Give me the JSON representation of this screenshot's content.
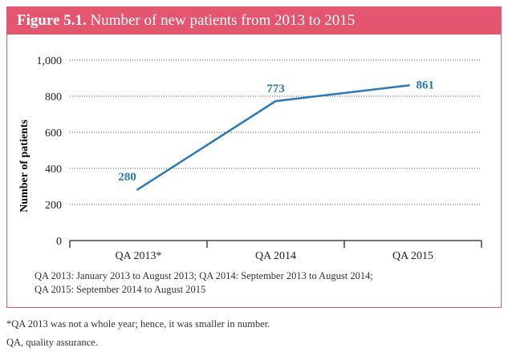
{
  "figure": {
    "label": "Figure 5.1.",
    "title": "Number of new patients from 2013 to 2015",
    "accent_color": "#e4566f",
    "line_color": "#2878b8"
  },
  "notes": {
    "line1": "QA 2013: January 2013 to August 2013;  QA 2014: September 2013 to August 2014;",
    "line2": "QA 2015: September 2014 to August 2015"
  },
  "footnotes": {
    "asterisk": "*QA 2013 was not a whole year; hence, it was smaller in number.",
    "abbreviation": "QA, quality assurance."
  },
  "chart_data": {
    "type": "line",
    "title": "Number of new patients from 2013 to 2015",
    "xlabel": "",
    "ylabel": "Number of patients",
    "categories": [
      "QA 2013*",
      "QA 2014",
      "QA 2015"
    ],
    "series": [
      {
        "values": [
          280,
          773,
          861
        ],
        "data_labels": [
          "280",
          "773",
          "861"
        ]
      }
    ],
    "ylim": [
      0,
      1000
    ],
    "yticks": [
      0,
      200,
      400,
      600,
      800,
      1000
    ],
    "ytick_labels": [
      "0",
      "200",
      "400",
      "600",
      "800",
      "1,000"
    ],
    "grid": "dotted horizontal",
    "legend": "none"
  }
}
